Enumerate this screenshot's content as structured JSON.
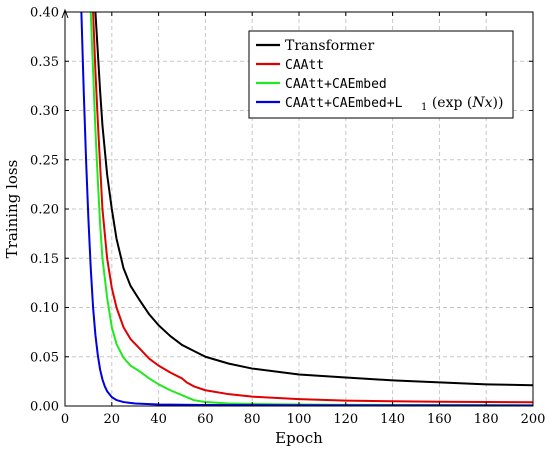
{
  "chart_data": {
    "type": "line",
    "xlabel": "Epoch",
    "ylabel": "Training loss",
    "xlim": [
      0,
      200
    ],
    "ylim": [
      0,
      0.4
    ],
    "xticks": [
      0,
      20,
      40,
      60,
      80,
      100,
      120,
      140,
      160,
      180,
      200
    ],
    "yticks": [
      0.0,
      0.05,
      0.1,
      0.15,
      0.2,
      0.25,
      0.3,
      0.35,
      0.4
    ],
    "xtick_labels": [
      "0",
      "20",
      "40",
      "60",
      "80",
      "100",
      "120",
      "140",
      "160",
      "180",
      "200"
    ],
    "ytick_labels": [
      "0.00",
      "0.05",
      "0.10",
      "0.15",
      "0.20",
      "0.25",
      "0.30",
      "0.35",
      "0.40"
    ],
    "grid": true,
    "legend_position": "top-right",
    "series": [
      {
        "name": "Transformer",
        "color": "#000000",
        "x": [
          13,
          14,
          15,
          16,
          18,
          20,
          22,
          25,
          28,
          32,
          36,
          40,
          45,
          50,
          55,
          60,
          70,
          80,
          90,
          100,
          120,
          140,
          160,
          180,
          200
        ],
        "y": [
          0.4,
          0.36,
          0.32,
          0.285,
          0.235,
          0.2,
          0.17,
          0.14,
          0.122,
          0.107,
          0.093,
          0.082,
          0.071,
          0.062,
          0.056,
          0.05,
          0.043,
          0.038,
          0.035,
          0.032,
          0.029,
          0.026,
          0.024,
          0.022,
          0.021
        ]
      },
      {
        "name": "CAAtt",
        "color": "#e00000",
        "x": [
          12,
          13,
          14,
          15,
          16,
          18,
          20,
          22,
          25,
          28,
          32,
          36,
          40,
          45,
          50,
          52,
          55,
          60,
          70,
          80,
          100,
          120,
          140,
          160,
          180,
          200
        ],
        "y": [
          0.4,
          0.34,
          0.29,
          0.245,
          0.2,
          0.15,
          0.12,
          0.1,
          0.08,
          0.068,
          0.058,
          0.048,
          0.041,
          0.034,
          0.028,
          0.024,
          0.02,
          0.016,
          0.012,
          0.0095,
          0.007,
          0.0055,
          0.0048,
          0.0043,
          0.004,
          0.0038
        ]
      },
      {
        "name": "CAAtt+CAEmbed",
        "color": "#22e822",
        "x": [
          11,
          12,
          13,
          14,
          15,
          16,
          18,
          20,
          22,
          25,
          28,
          32,
          36,
          40,
          45,
          50,
          55,
          60,
          70,
          80,
          100,
          120,
          150,
          200
        ],
        "y": [
          0.4,
          0.34,
          0.28,
          0.23,
          0.185,
          0.15,
          0.11,
          0.08,
          0.063,
          0.049,
          0.041,
          0.035,
          0.028,
          0.022,
          0.016,
          0.011,
          0.006,
          0.004,
          0.0025,
          0.002,
          0.0015,
          0.0012,
          0.001,
          0.0008
        ]
      },
      {
        "name": "CAAtt+CAEmbed+L1 (exp(Nx))",
        "color": "#0000e0",
        "x": [
          7,
          8,
          9,
          10,
          11,
          12,
          13,
          14,
          15,
          16,
          17,
          18,
          20,
          22,
          25,
          30,
          40,
          60,
          100,
          150,
          200
        ],
        "y": [
          0.4,
          0.32,
          0.25,
          0.19,
          0.14,
          0.1,
          0.072,
          0.052,
          0.037,
          0.027,
          0.02,
          0.015,
          0.009,
          0.006,
          0.004,
          0.0025,
          0.0015,
          0.001,
          0.0007,
          0.0006,
          0.0005
        ]
      }
    ]
  },
  "legend": {
    "labels": [
      "Transformer",
      "CAAtt",
      "CAAtt+CAEmbed",
      "CAAtt+CAEmbed+L"
    ]
  }
}
